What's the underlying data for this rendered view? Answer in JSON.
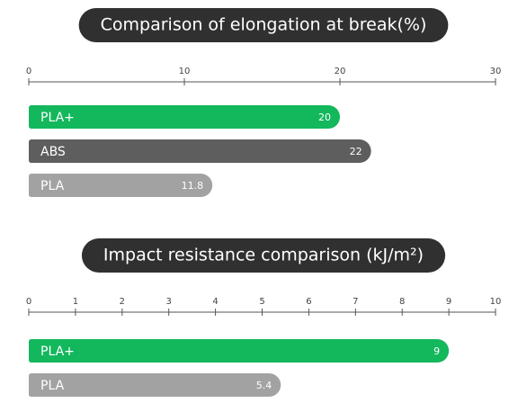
{
  "chart_data": [
    {
      "type": "hbar",
      "title": "Comparison of elongation at break(%)",
      "categories": [
        "PLA+",
        "ABS",
        "PLA"
      ],
      "values": [
        20,
        22,
        11.8
      ],
      "colors": [
        "#13b75c",
        "#5e5e5e",
        "#a2a2a2"
      ],
      "xlim": [
        0,
        30
      ],
      "xticks": [
        0,
        10,
        20,
        30
      ]
    },
    {
      "type": "hbar",
      "title": "Impact resistance comparison (kJ/m²)",
      "categories": [
        "PLA+",
        "PLA"
      ],
      "values": [
        9,
        5.4
      ],
      "colors": [
        "#13b75c",
        "#a2a2a2"
      ],
      "xlim": [
        0,
        10
      ],
      "xticks": [
        0,
        1,
        2,
        3,
        4,
        5,
        6,
        7,
        8,
        9,
        10
      ]
    }
  ]
}
